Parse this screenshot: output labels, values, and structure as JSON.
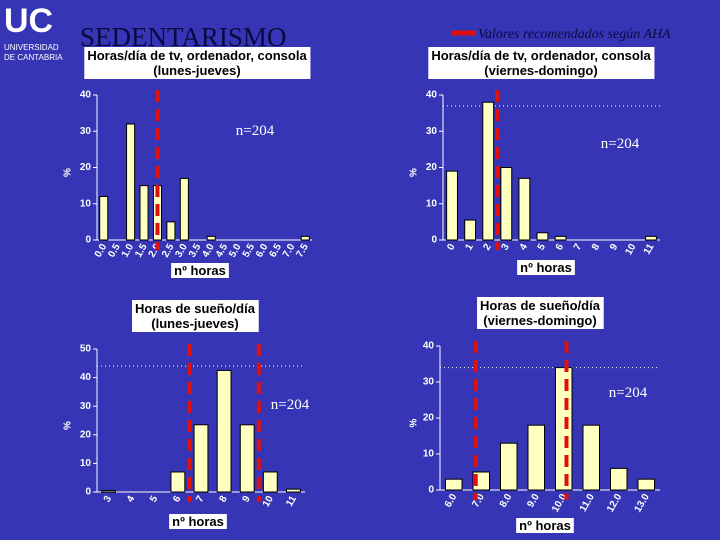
{
  "header": {
    "logo": "UC",
    "logo_lines": [
      "UNIVERSIDAD",
      "DE CANTABRIA"
    ],
    "title": "SEDENTARISMO",
    "legend": "Valores recomendados según AHA"
  },
  "chart_data": [
    {
      "type": "bar",
      "title": [
        "Horas/día de tv, ordenador, consola",
        "(lunes-jueves)"
      ],
      "x_label": "nº horas",
      "y_label": "%",
      "annotation": "n=204",
      "categories": [
        "0.0",
        "0.5",
        "1.0",
        "1.5",
        "2.0",
        "2.5",
        "3.0",
        "3.5",
        "4.0",
        "4.5",
        "5.0",
        "5.5",
        "6.0",
        "6.5",
        "7.0",
        "7.5"
      ],
      "values": [
        12,
        0,
        32,
        15,
        15,
        5,
        17,
        0,
        1,
        0,
        0,
        0,
        0,
        0,
        0,
        1
      ],
      "color": "#ffffc0",
      "ylim": [
        0,
        40
      ],
      "yticks": [
        0,
        10,
        20,
        30,
        40
      ],
      "recommended_positions": [
        4.5
      ]
    },
    {
      "type": "bar",
      "title": [
        "Horas/día de tv, ordenador, consola",
        "(viernes-domingo)"
      ],
      "x_label": "nº horas",
      "y_label": "%",
      "annotation": "n=204",
      "categories": [
        "0",
        "1",
        "2",
        "3",
        "4",
        "5",
        "6",
        "7",
        "8",
        "9",
        "10",
        "11"
      ],
      "values": [
        19,
        5.5,
        38,
        20,
        17,
        2,
        1,
        0,
        0,
        0,
        0,
        1
      ],
      "color": "#ffffc0",
      "ylim": [
        0,
        40
      ],
      "yticks": [
        0,
        10,
        20,
        30,
        40
      ],
      "reference_level": 37,
      "recommended_positions": [
        3
      ]
    },
    {
      "type": "bar",
      "title": [
        "Horas de sueño/día",
        "(lunes-jueves)"
      ],
      "x_label": "nº horas",
      "y_label": "%",
      "annotation": "n=204",
      "categories": [
        "3",
        "4",
        "5",
        "6",
        "7",
        "8",
        "9",
        "10",
        "11"
      ],
      "values": [
        0.5,
        0,
        0,
        7,
        23.5,
        42.5,
        23.5,
        7,
        1
      ],
      "color": "#ffffc0",
      "ylim": [
        0,
        50
      ],
      "yticks": [
        0,
        10,
        20,
        30,
        40,
        50
      ],
      "reference_level": 44,
      "recommended_positions": [
        4,
        7
      ]
    },
    {
      "type": "bar",
      "title": [
        "Horas de sueño/día",
        "(viernes-domingo)"
      ],
      "x_label": "nº horas",
      "y_label": "%",
      "annotation": "n=204",
      "categories": [
        "6.0",
        "7.0",
        "8.0",
        "9.0",
        "10.0",
        "11.0",
        "12.0",
        "13.0"
      ],
      "values": [
        3,
        5,
        13,
        18,
        34,
        18,
        6,
        3
      ],
      "color": "#ffffc0",
      "ylim": [
        0,
        40
      ],
      "yticks": [
        0,
        10,
        20,
        30,
        40
      ],
      "reference_level": 34,
      "recommended_positions": [
        1.3,
        4.6
      ]
    }
  ]
}
